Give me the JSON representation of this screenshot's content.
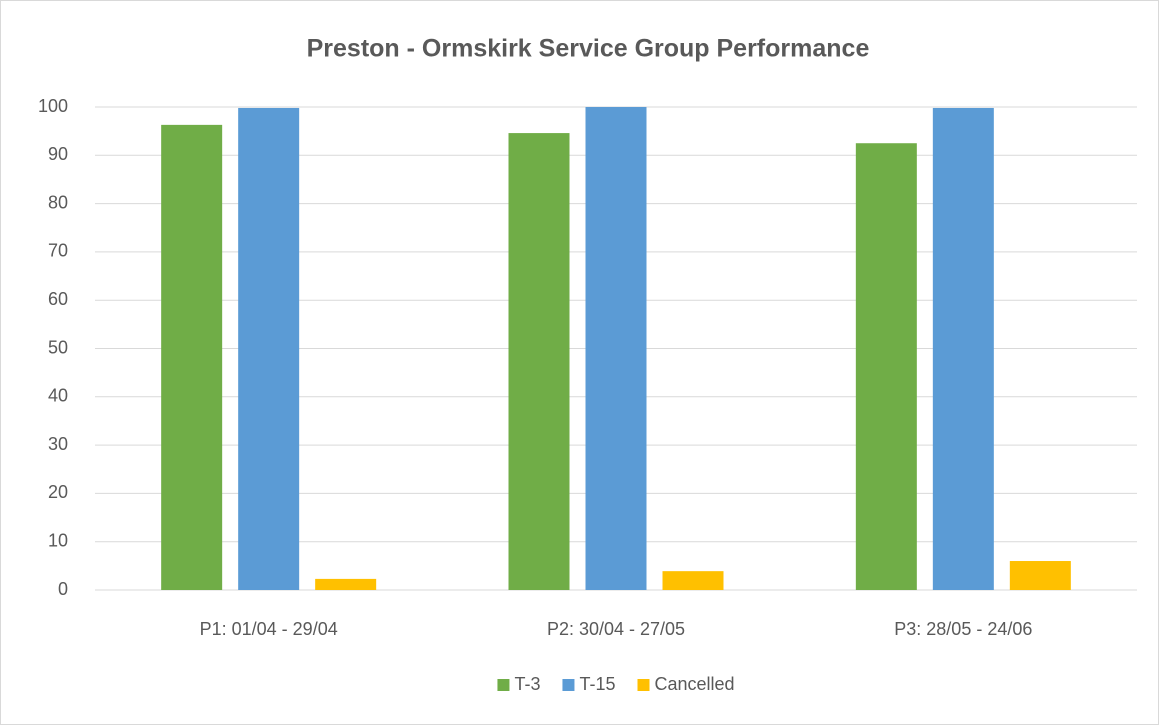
{
  "chart_data": {
    "type": "bar",
    "title": "Preston - Ormskirk Service Group Performance",
    "categories": [
      "P1: 01/04 - 29/04",
      "P2: 30/04 - 27/05",
      "P3: 28/05 - 24/06"
    ],
    "series": [
      {
        "name": "T-3",
        "color": "#70ad47",
        "values": [
          96.3,
          94.6,
          92.5
        ]
      },
      {
        "name": "T-15",
        "color": "#5b9bd5",
        "values": [
          99.8,
          100,
          99.8
        ]
      },
      {
        "name": "Cancelled",
        "color": "#ffc000",
        "values": [
          2.3,
          3.9,
          6.0
        ]
      }
    ],
    "ylim": [
      0,
      100
    ],
    "yticks": [
      0,
      10,
      20,
      30,
      40,
      50,
      60,
      70,
      80,
      90,
      100
    ],
    "grid": true,
    "legend": "bottom"
  }
}
